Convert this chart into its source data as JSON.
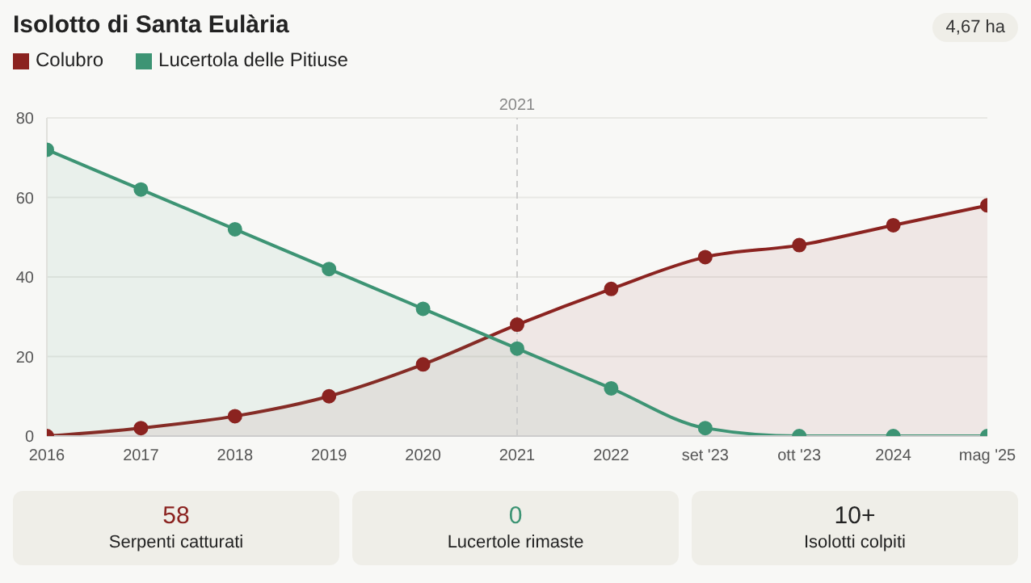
{
  "chart_data": {
    "type": "area",
    "title": "Isolotto di Santa Eulària",
    "categories": [
      "2016",
      "2017",
      "2018",
      "2019",
      "2020",
      "2021",
      "2022",
      "set '23",
      "ott '23",
      "2024",
      "mag '25"
    ],
    "series": [
      {
        "name": "Colubro",
        "color": "#8b2320",
        "values": [
          0,
          2,
          5,
          10,
          18,
          28,
          37,
          45,
          48,
          53,
          58
        ]
      },
      {
        "name": "Lucertola delle Pitiuse",
        "color": "#3d9474",
        "values": [
          72,
          62,
          52,
          42,
          32,
          22,
          12,
          2,
          0,
          0,
          0
        ]
      }
    ],
    "ylim": [
      0,
      80
    ],
    "yticks": [
      0,
      20,
      40,
      60,
      80
    ],
    "grid": "y",
    "legend": "top left",
    "marker": "circle",
    "ref_lines": [
      {
        "axis": "x",
        "value": "2021",
        "label": "2021",
        "line_style": "dashed"
      }
    ],
    "annotations": [
      "4,67 ha",
      "58",
      "Serpenti catturati",
      "0",
      "Lucertole rimaste",
      "10+",
      "Isolotti colpiti"
    ]
  }
}
